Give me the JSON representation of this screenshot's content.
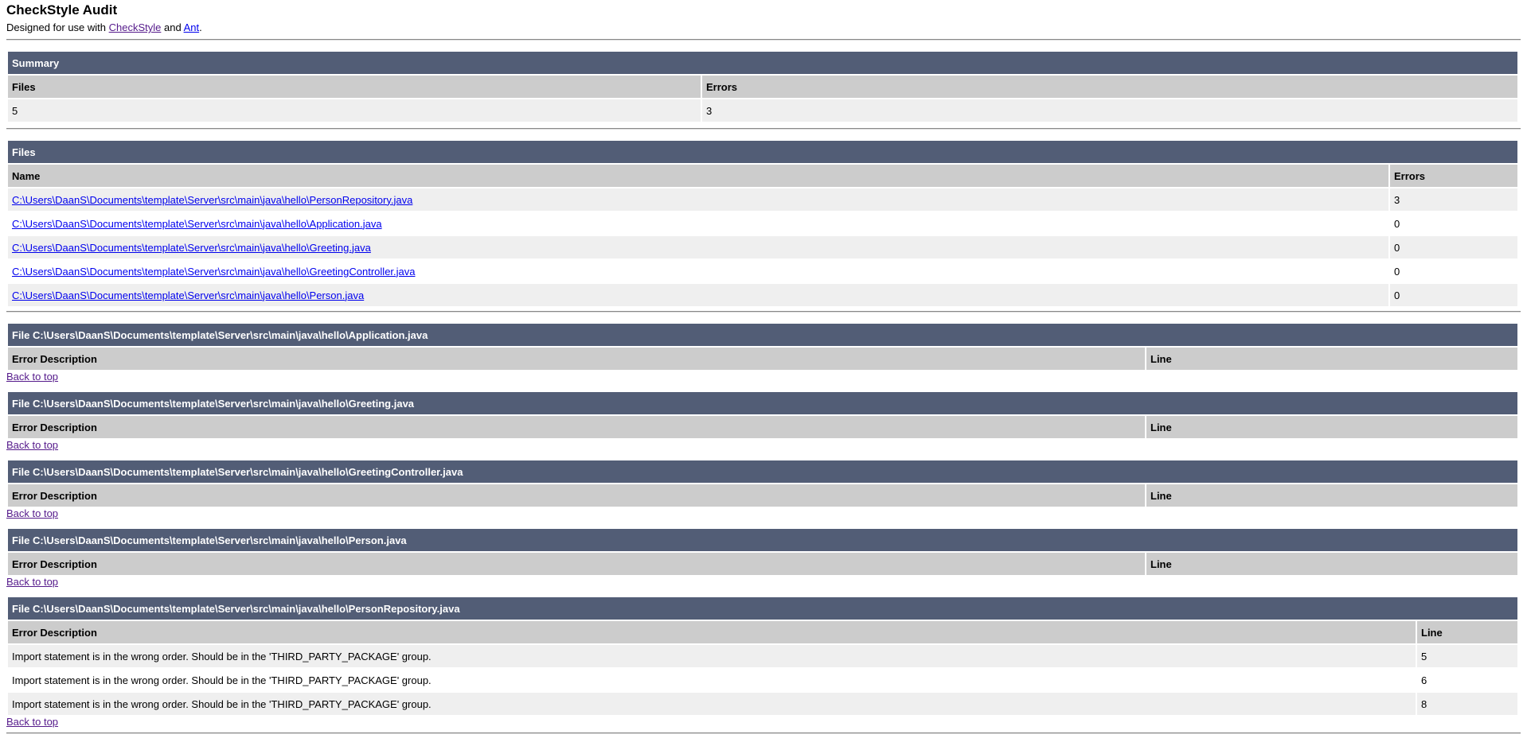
{
  "header": {
    "title": "CheckStyle Audit",
    "designed_prefix": "Designed for use with ",
    "checkstyle_link": "CheckStyle",
    "and": " and ",
    "ant_link": "Ant",
    "suffix": "."
  },
  "summary": {
    "title": "Summary",
    "col_files": "Files",
    "col_errors": "Errors",
    "files": "5",
    "errors": "3"
  },
  "files": {
    "title": "Files",
    "col_name": "Name",
    "col_errors": "Errors",
    "rows": [
      {
        "name": "C:\\Users\\DaanS\\Documents\\template\\Server\\src\\main\\java\\hello\\PersonRepository.java",
        "errors": "3"
      },
      {
        "name": "C:\\Users\\DaanS\\Documents\\template\\Server\\src\\main\\java\\hello\\Application.java",
        "errors": "0"
      },
      {
        "name": "C:\\Users\\DaanS\\Documents\\template\\Server\\src\\main\\java\\hello\\Greeting.java",
        "errors": "0"
      },
      {
        "name": "C:\\Users\\DaanS\\Documents\\template\\Server\\src\\main\\java\\hello\\GreetingController.java",
        "errors": "0"
      },
      {
        "name": "C:\\Users\\DaanS\\Documents\\template\\Server\\src\\main\\java\\hello\\Person.java",
        "errors": "0"
      }
    ]
  },
  "col_desc": "Error Description",
  "col_line": "Line",
  "back_to_top": "Back to top",
  "sections": [
    {
      "title": "File C:\\Users\\DaanS\\Documents\\template\\Server\\src\\main\\java\\hello\\Application.java"
    },
    {
      "title": "File C:\\Users\\DaanS\\Documents\\template\\Server\\src\\main\\java\\hello\\Greeting.java"
    },
    {
      "title": "File C:\\Users\\DaanS\\Documents\\template\\Server\\src\\main\\java\\hello\\GreetingController.java"
    },
    {
      "title": "File C:\\Users\\DaanS\\Documents\\template\\Server\\src\\main\\java\\hello\\Person.java"
    },
    {
      "title": "File C:\\Users\\DaanS\\Documents\\template\\Server\\src\\main\\java\\hello\\PersonRepository.java",
      "errors": [
        {
          "desc": "Import statement is in the wrong order. Should be in the 'THIRD_PARTY_PACKAGE' group.",
          "line": "5"
        },
        {
          "desc": "Import statement is in the wrong order. Should be in the 'THIRD_PARTY_PACKAGE' group.",
          "line": "6"
        },
        {
          "desc": "Import statement is in the wrong order. Should be in the 'THIRD_PARTY_PACKAGE' group.",
          "line": "8"
        }
      ]
    }
  ],
  "colors": {
    "header_bg": "#525D76",
    "th_bg": "#CCCCCC",
    "row_alt": "#EFEFEF",
    "link": "#0000EE",
    "visited": "#551A8B"
  }
}
